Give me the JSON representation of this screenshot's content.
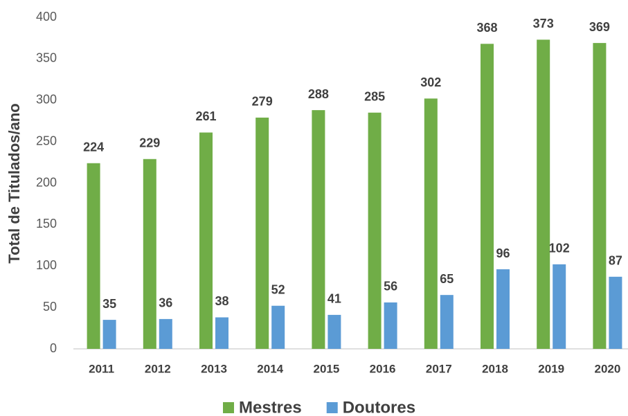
{
  "chart_data": {
    "type": "bar",
    "categories": [
      "2011",
      "2012",
      "2013",
      "2014",
      "2015",
      "2016",
      "2017",
      "2018",
      "2019",
      "2020"
    ],
    "series": [
      {
        "name": "Mestres",
        "color": "#70ad47",
        "values": [
          224,
          229,
          261,
          279,
          288,
          285,
          302,
          368,
          373,
          369
        ]
      },
      {
        "name": "Doutores",
        "color": "#5b9bd5",
        "values": [
          35,
          36,
          38,
          52,
          41,
          56,
          65,
          96,
          102,
          87
        ]
      }
    ],
    "y_label": "Total de Titulados/ano",
    "ylim": [
      0,
      400
    ],
    "yticks": [
      0,
      50,
      100,
      150,
      200,
      250,
      300,
      350,
      400
    ],
    "grid": false,
    "legend": "bottom"
  }
}
